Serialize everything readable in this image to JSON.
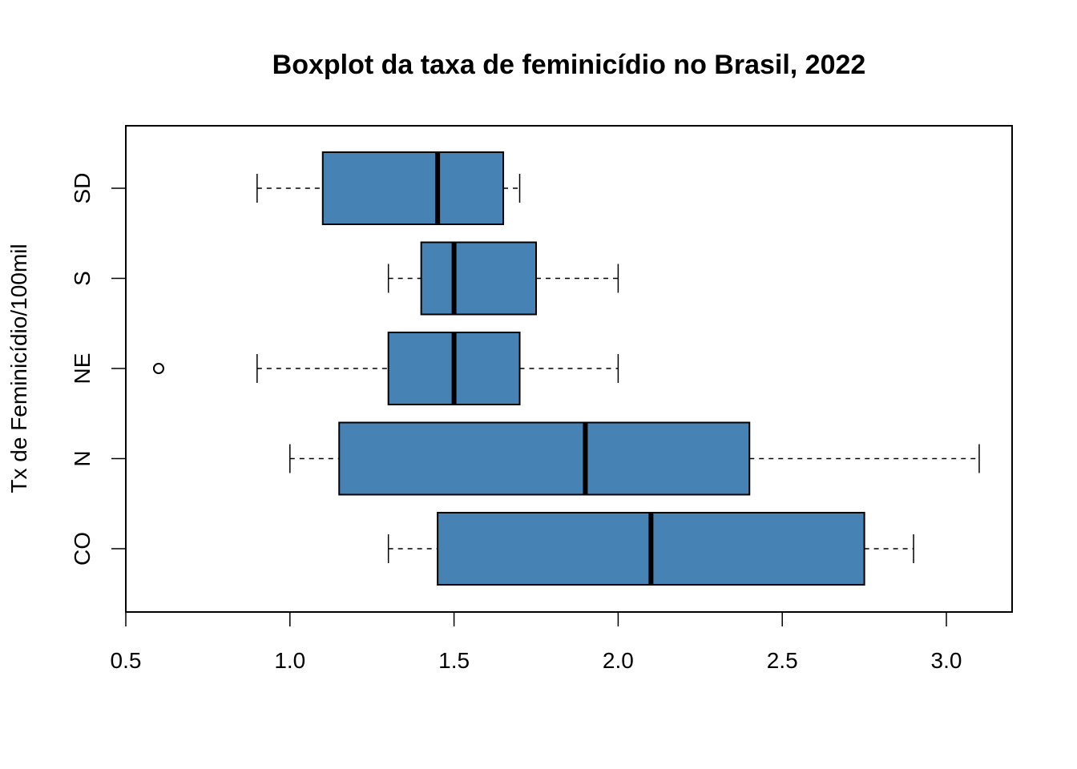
{
  "chart_data": {
    "type": "boxplot",
    "orientation": "horizontal",
    "title": "Boxplot da taxa de feminicídio no Brasil, 2022",
    "xlabel": "",
    "ylabel": "Tx de Feminicídio/100mil",
    "xlim": [
      0.5,
      3.2
    ],
    "xticks": [
      0.5,
      1.0,
      1.5,
      2.0,
      2.5,
      3.0
    ],
    "xtick_labels": [
      "0.5",
      "1.0",
      "1.5",
      "2.0",
      "2.5",
      "3.0"
    ],
    "box_color": "#4682B4",
    "grid": false,
    "categories": [
      "CO",
      "N",
      "NE",
      "S",
      "SD"
    ],
    "boxes": [
      {
        "category": "CO",
        "whisker_low": 1.3,
        "q1": 1.45,
        "median": 2.1,
        "q3": 2.75,
        "whisker_high": 2.9,
        "outliers": []
      },
      {
        "category": "N",
        "whisker_low": 1.0,
        "q1": 1.15,
        "median": 1.9,
        "q3": 2.4,
        "whisker_high": 3.1,
        "outliers": []
      },
      {
        "category": "NE",
        "whisker_low": 0.9,
        "q1": 1.3,
        "median": 1.5,
        "q3": 1.7,
        "whisker_high": 2.0,
        "outliers": [
          0.6
        ]
      },
      {
        "category": "S",
        "whisker_low": 1.3,
        "q1": 1.4,
        "median": 1.5,
        "q3": 1.75,
        "whisker_high": 2.0,
        "outliers": []
      },
      {
        "category": "SD",
        "whisker_low": 0.9,
        "q1": 1.1,
        "median": 1.45,
        "q3": 1.65,
        "whisker_high": 1.7,
        "outliers": []
      }
    ]
  }
}
